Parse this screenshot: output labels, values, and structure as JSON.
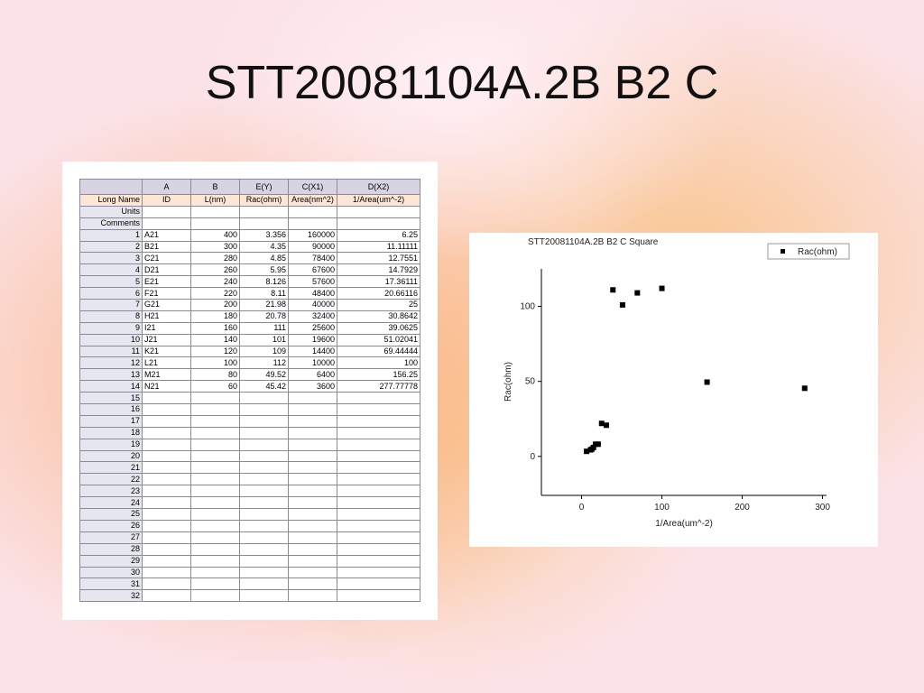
{
  "title": "STT20081104A.2B B2 C",
  "table": {
    "columns": [
      "A",
      "B",
      "E(Y)",
      "C(X1)",
      "D(X2)"
    ],
    "rows": [
      [
        "Long Name",
        "ID",
        "L(nm)",
        "Rac(ohm)",
        "Area(nm^2)",
        "1/Area(um^-2)"
      ],
      [
        "Units"
      ],
      [
        "Comments"
      ],
      [
        1,
        "A21",
        400,
        3.356,
        160000,
        6.25
      ],
      [
        2,
        "B21",
        300,
        4.35,
        90000,
        11.11111
      ],
      [
        3,
        "C21",
        280,
        4.85,
        78400,
        12.7551
      ],
      [
        4,
        "D21",
        260,
        5.95,
        67600,
        14.7929
      ],
      [
        5,
        "E21",
        240,
        8.126,
        57600,
        17.36111
      ],
      [
        6,
        "F21",
        220,
        8.11,
        48400,
        20.66116
      ],
      [
        7,
        "G21",
        200,
        21.98,
        40000,
        25
      ],
      [
        8,
        "H21",
        180,
        20.78,
        32400,
        30.8642
      ],
      [
        9,
        "I21",
        160,
        111,
        25600,
        39.0625
      ],
      [
        10,
        "J21",
        140,
        101,
        19600,
        51.02041
      ],
      [
        11,
        "K21",
        120,
        109,
        14400,
        69.44444
      ],
      [
        12,
        "L21",
        100,
        112,
        10000,
        100
      ],
      [
        13,
        "M21",
        80,
        49.52,
        6400,
        156.25
      ],
      [
        14,
        "N21",
        60,
        45.42,
        3600,
        277.77778
      ],
      [
        15
      ],
      [
        16
      ],
      [
        17
      ],
      [
        18
      ],
      [
        19
      ],
      [
        20
      ],
      [
        21
      ],
      [
        22
      ],
      [
        23
      ],
      [
        24
      ],
      [
        25
      ],
      [
        26
      ],
      [
        27
      ],
      [
        28
      ],
      [
        29
      ],
      [
        30
      ],
      [
        31
      ],
      [
        32
      ]
    ]
  },
  "chart_data": {
    "type": "scatter",
    "title": "STT20081104A.2B B2 C Square",
    "x_label": "1/Area(um^-2)",
    "y_label": "Rac(ohm)",
    "x": [
      6.25,
      11.11111,
      12.7551,
      14.7929,
      17.36111,
      20.66116,
      25,
      30.8642,
      39.0625,
      51.02041,
      69.44444,
      100,
      156.25,
      277.77778
    ],
    "series": [
      {
        "name": "Rac(ohm)",
        "color": "#000000",
        "values": [
          3.356,
          4.35,
          4.85,
          5.95,
          8.126,
          8.11,
          21.98,
          20.78,
          111,
          101,
          109,
          112,
          49.52,
          45.42
        ]
      }
    ],
    "xlim": [
      -50,
      305
    ],
    "ylim": [
      -26,
      125
    ],
    "xticks": [
      0,
      100,
      200,
      300
    ],
    "yticks": [
      0,
      50,
      100
    ],
    "legend": "upper right",
    "grid": false
  }
}
